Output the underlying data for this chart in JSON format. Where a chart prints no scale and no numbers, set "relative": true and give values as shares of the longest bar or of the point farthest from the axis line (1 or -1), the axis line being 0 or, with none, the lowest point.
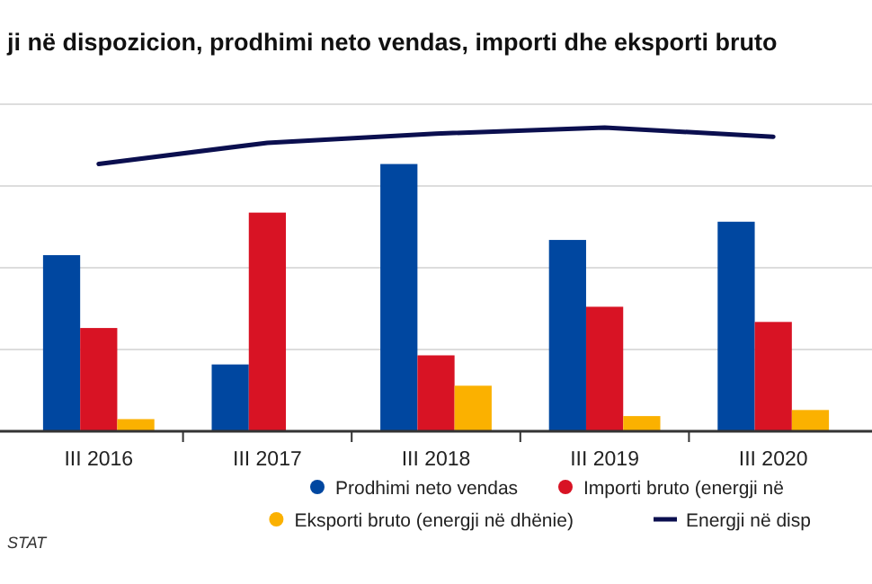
{
  "chart_data": {
    "type": "bar",
    "title": "ji në dispozicion, prodhimi neto vendas, importi dhe eksporti bruto",
    "relative": true,
    "grid": "y",
    "legend": "bottom right",
    "categories": [
      "III 2016",
      "III 2017",
      "III 2018",
      "III 2019",
      "III 2020"
    ],
    "series": [
      {
        "name": "Prodhimi neto vendas",
        "color": "#0047a0",
        "values": [
          0.58,
          0.22,
          0.88,
          0.63,
          0.69
        ]
      },
      {
        "name": "Importi bruto (energji në",
        "color": "#d81324",
        "values": [
          0.34,
          0.72,
          0.25,
          0.41,
          0.36
        ]
      },
      {
        "name": "Eksporti bruto (energji në dhënie)",
        "color": "#fbb100",
        "values": [
          0.04,
          0,
          0.15,
          0.05,
          0.07
        ]
      },
      {
        "name": "Energji në disp",
        "type": "line",
        "color": "#0b0f4f",
        "values": [
          0.88,
          0.95,
          0.98,
          1,
          0.97
        ]
      }
    ],
    "annotations": [
      "STAT"
    ]
  }
}
